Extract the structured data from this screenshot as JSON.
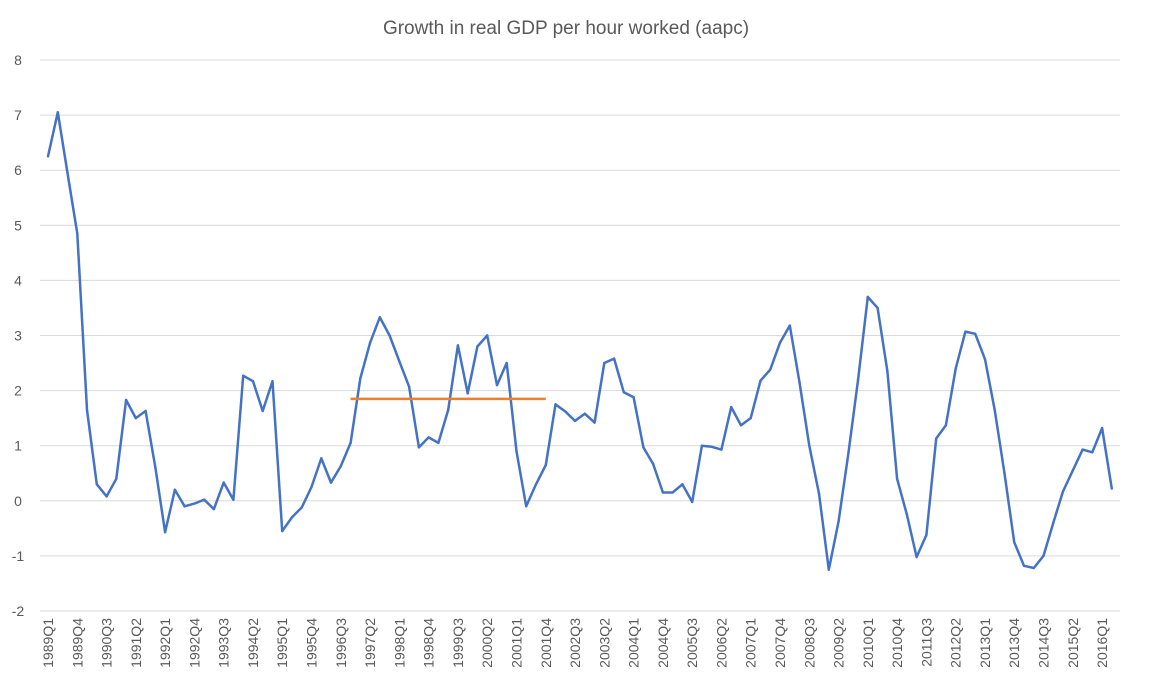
{
  "chart_data": {
    "type": "line",
    "title": "Growth in real GDP per hour worked (aapc)",
    "xlabel": "",
    "ylabel": "",
    "ylim": [
      -2,
      8
    ],
    "yticks": [
      -2,
      -1,
      0,
      1,
      2,
      3,
      4,
      5,
      6,
      7,
      8
    ],
    "grid": true,
    "x_label_every": 3,
    "categories": [
      "1989Q1",
      "1989Q2",
      "1989Q3",
      "1989Q4",
      "1990Q1",
      "1990Q2",
      "1990Q3",
      "1990Q4",
      "1991Q1",
      "1991Q2",
      "1991Q3",
      "1991Q4",
      "1992Q1",
      "1992Q2",
      "1992Q3",
      "1992Q4",
      "1993Q1",
      "1993Q2",
      "1993Q3",
      "1993Q4",
      "1994Q1",
      "1994Q2",
      "1994Q3",
      "1994Q4",
      "1995Q1",
      "1995Q2",
      "1995Q3",
      "1995Q4",
      "1996Q1",
      "1996Q2",
      "1996Q3",
      "1996Q4",
      "1997Q1",
      "1997Q2",
      "1997Q3",
      "1997Q4",
      "1998Q1",
      "1998Q2",
      "1998Q3",
      "1998Q4",
      "1999Q1",
      "1999Q2",
      "1999Q3",
      "1999Q4",
      "2000Q1",
      "2000Q2",
      "2000Q3",
      "2000Q4",
      "2001Q1",
      "2001Q2",
      "2001Q3",
      "2001Q4",
      "2002Q1",
      "2002Q2",
      "2002Q3",
      "2002Q4",
      "2003Q1",
      "2003Q2",
      "2003Q3",
      "2003Q4",
      "2004Q1",
      "2004Q2",
      "2004Q3",
      "2004Q4",
      "2005Q1",
      "2005Q2",
      "2005Q3",
      "2005Q4",
      "2006Q1",
      "2006Q2",
      "2006Q3",
      "2006Q4",
      "2007Q1",
      "2007Q2",
      "2007Q3",
      "2007Q4",
      "2008Q1",
      "2008Q2",
      "2008Q3",
      "2008Q4",
      "2009Q1",
      "2009Q2",
      "2009Q3",
      "2009Q4",
      "2010Q1",
      "2010Q2",
      "2010Q3",
      "2010Q4",
      "2011Q1",
      "2011Q2",
      "2011Q3",
      "2011Q4",
      "2012Q1",
      "2012Q2",
      "2012Q3",
      "2012Q4",
      "2013Q1",
      "2013Q2",
      "2013Q3",
      "2013Q4",
      "2014Q1",
      "2014Q2",
      "2014Q3",
      "2014Q4",
      "2015Q1",
      "2015Q2",
      "2015Q3",
      "2015Q4",
      "2016Q1",
      "2016Q2"
    ],
    "series": [
      {
        "color": "#4472c4",
        "values": [
          6.25,
          7.05,
          5.95,
          4.85,
          1.65,
          0.3,
          0.08,
          0.4,
          1.83,
          1.5,
          1.63,
          0.6,
          -0.57,
          0.2,
          -0.1,
          -0.05,
          0.02,
          -0.15,
          0.33,
          0.02,
          2.27,
          2.17,
          1.63,
          2.17,
          -0.55,
          -0.3,
          -0.12,
          0.25,
          0.77,
          0.33,
          0.63,
          1.05,
          2.22,
          2.87,
          3.33,
          3.0,
          2.53,
          2.07,
          0.97,
          1.15,
          1.05,
          1.65,
          2.82,
          1.95,
          2.8,
          3.0,
          2.1,
          2.5,
          0.9,
          -0.1,
          0.3,
          0.65,
          1.75,
          1.62,
          1.45,
          1.58,
          1.42,
          2.5,
          2.58,
          1.97,
          1.88,
          0.97,
          0.67,
          0.15,
          0.15,
          0.3,
          -0.02,
          1.0,
          0.98,
          0.93,
          1.7,
          1.37,
          1.5,
          2.18,
          2.38,
          2.87,
          3.18,
          2.15,
          1.0,
          0.13,
          -1.25,
          -0.37,
          0.85,
          2.2,
          3.7,
          3.5,
          2.35,
          0.4,
          -0.25,
          -1.02,
          -0.62,
          1.13,
          1.37,
          2.4,
          3.07,
          3.03,
          2.57,
          1.65,
          0.5,
          -0.75,
          -1.18,
          -1.22,
          -1.0,
          -0.4,
          0.17,
          0.55,
          0.93,
          0.88,
          1.32,
          0.22
        ]
      },
      {
        "color": "#ed7d31",
        "x_start": "1996Q4",
        "x_end": "2001Q4",
        "value": 1.85
      }
    ]
  }
}
